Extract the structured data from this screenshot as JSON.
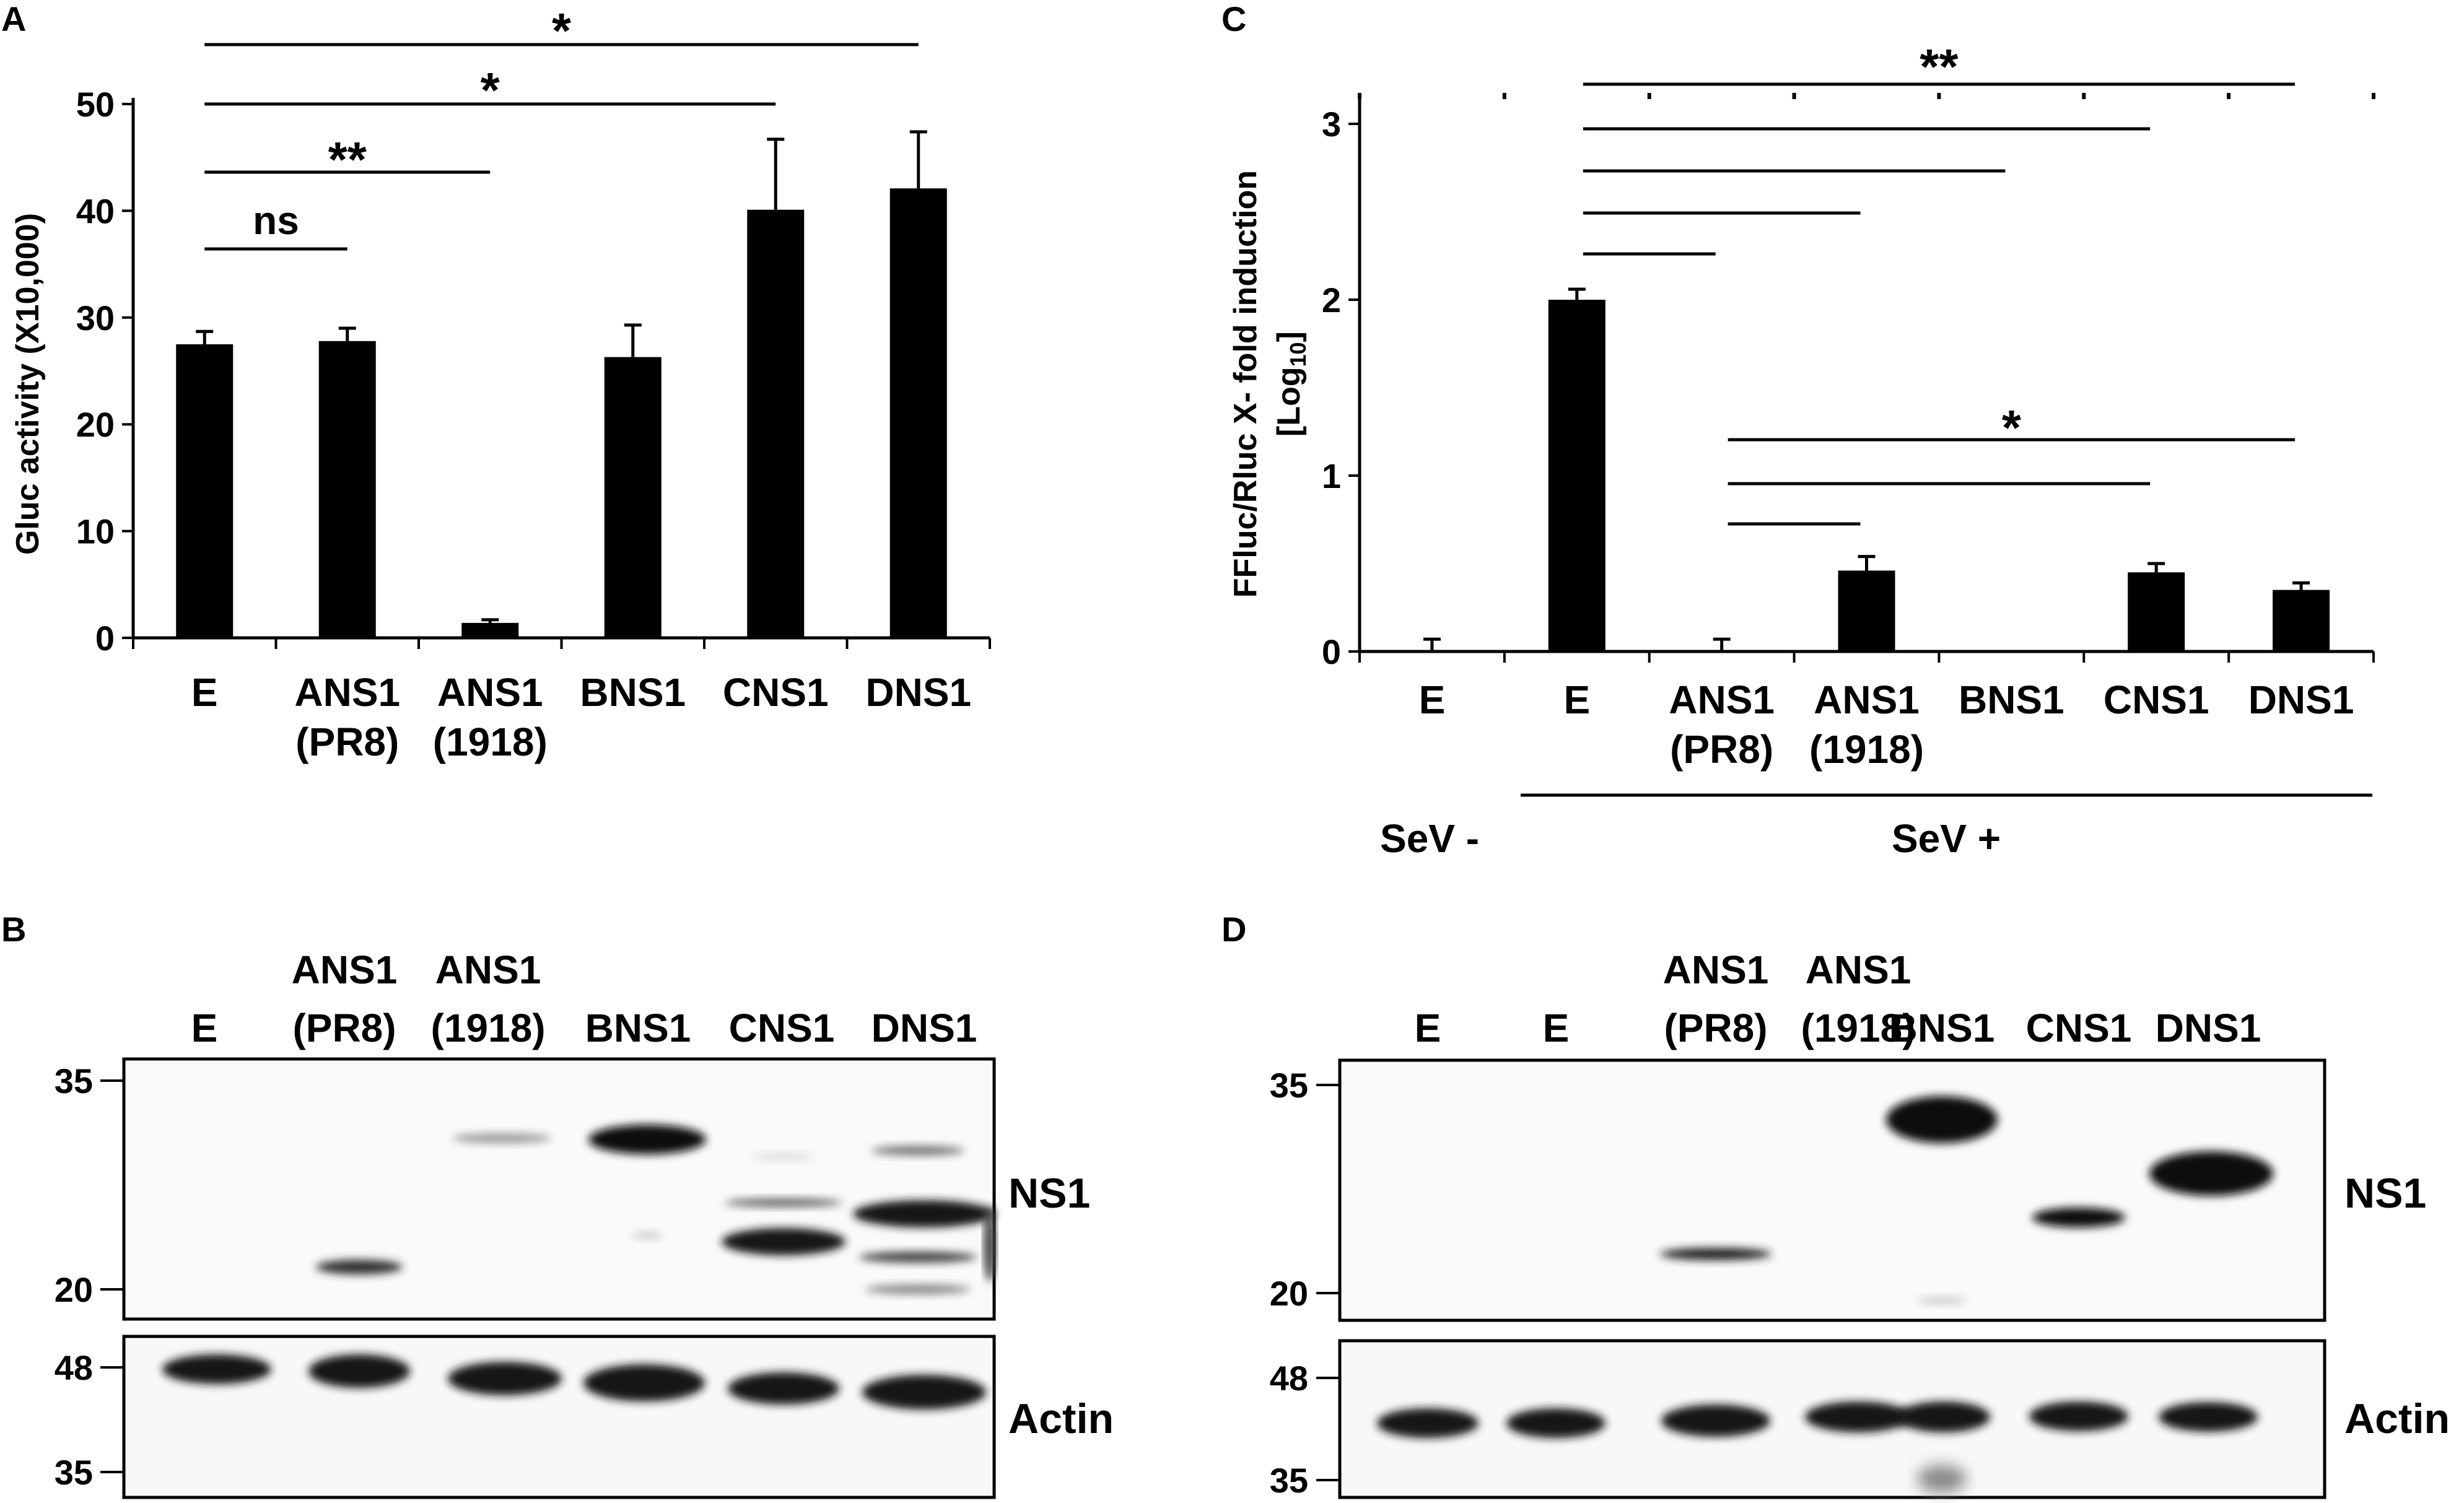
{
  "panels": {
    "A": "A",
    "B": "B",
    "C": "C",
    "D": "D"
  },
  "chart_data": [
    {
      "panel": "A",
      "type": "bar",
      "title": "",
      "xlabel": "",
      "ylabel": "Gluc activity (X10,000)",
      "ylim": [
        0,
        50
      ],
      "yticks": [
        "0",
        "10",
        "20",
        "30",
        "40",
        "50"
      ],
      "categories": [
        [
          "E"
        ],
        [
          "ANS1",
          "(PR8)"
        ],
        [
          "ANS1",
          "(1918)"
        ],
        [
          "BNS1"
        ],
        [
          "CNS1"
        ],
        [
          "DNS1"
        ]
      ],
      "values": [
        27.5,
        27.8,
        1.4,
        26.3,
        40.1,
        42.1
      ],
      "errors": [
        1.2,
        1.2,
        0.3,
        3.0,
        6.6,
        5.3
      ],
      "grid": false,
      "significance": [
        {
          "from": 0,
          "to": 1,
          "label": "ns"
        },
        {
          "from": 0,
          "to": 2,
          "label": "**"
        },
        {
          "from": 0,
          "to": 4,
          "label": "*"
        },
        {
          "from": 0,
          "to": 5,
          "label": "*"
        }
      ]
    },
    {
      "panel": "C",
      "type": "bar",
      "title": "",
      "xlabel": "",
      "ylabel": "FFluc/Rluc X- fold induction",
      "ylabel2": "[Log",
      "ylabel2_sub": "10",
      "ylabel2_end": "]",
      "ylim": [
        0,
        3
      ],
      "yticks": [
        "0",
        "1",
        "2",
        "3"
      ],
      "categories": [
        [
          "E"
        ],
        [
          "E"
        ],
        [
          "ANS1",
          "(PR8)"
        ],
        [
          "ANS1",
          "(1918)"
        ],
        [
          "BNS1"
        ],
        [
          "CNS1"
        ],
        [
          "DNS1"
        ]
      ],
      "values": [
        0.0,
        2.0,
        0.0,
        0.46,
        0.0,
        0.45,
        0.35
      ],
      "errors": [
        0.07,
        0.06,
        0.07,
        0.08,
        0.0,
        0.05,
        0.04
      ],
      "grid": false,
      "sev_minus": "SeV -",
      "sev_plus": "SeV +",
      "significance_upper_label": "**",
      "significance_lower_label": "*",
      "significance_upper": [
        {
          "from": 1,
          "to": 2
        },
        {
          "from": 1,
          "to": 3
        },
        {
          "from": 1,
          "to": 4
        },
        {
          "from": 1,
          "to": 5
        },
        {
          "from": 1,
          "to": 6
        }
      ],
      "significance_lower": [
        {
          "from": 2,
          "to": 3
        },
        {
          "from": 2,
          "to": 5
        },
        {
          "from": 2,
          "to": 6
        }
      ]
    }
  ],
  "blot_B": {
    "lanes": [
      [
        "E"
      ],
      [
        "ANS1",
        "(PR8)"
      ],
      [
        "ANS1",
        "(1918)"
      ],
      [
        "BNS1"
      ],
      [
        "CNS1"
      ],
      [
        "DNS1"
      ]
    ],
    "upper_markers": [
      "35",
      "20"
    ],
    "lower_markers": [
      "48",
      "35"
    ],
    "label_upper": "NS1",
    "label_lower": "Actin"
  },
  "blot_D": {
    "lanes": [
      [
        "E"
      ],
      [
        "E"
      ],
      [
        "ANS1",
        "(PR8)"
      ],
      [
        "ANS1",
        "(1918)"
      ],
      [
        "BNS1"
      ],
      [
        "CNS1"
      ],
      [
        "DNS1"
      ]
    ],
    "upper_markers": [
      "35",
      "20"
    ],
    "lower_markers": [
      "48",
      "35"
    ],
    "label_upper": "NS1",
    "label_lower": "Actin"
  }
}
